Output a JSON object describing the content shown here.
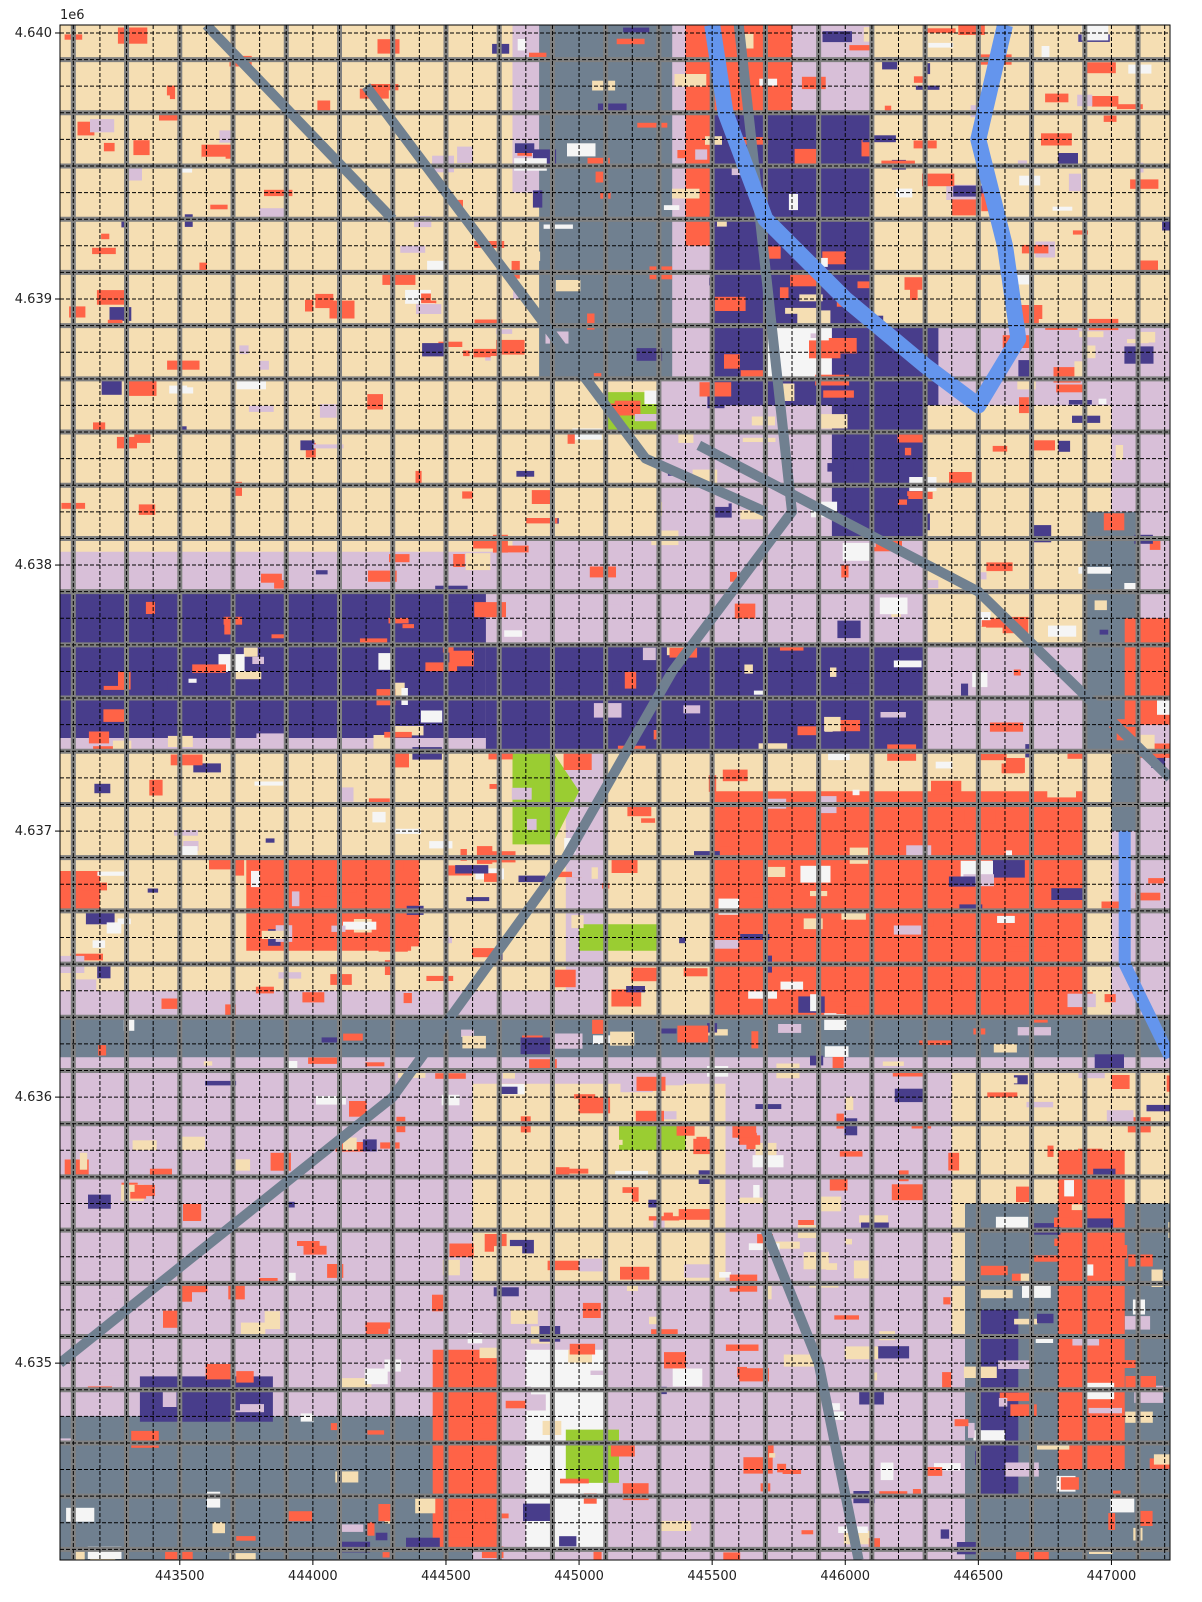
{
  "figure": {
    "offset_label": "1e6",
    "x_ticks": [
      "443500",
      "444000",
      "444500",
      "445000",
      "445500",
      "446000",
      "446500",
      "447000"
    ],
    "y_ticks": [
      "4.640",
      "4.639",
      "4.638",
      "4.637",
      "4.636",
      "4.635"
    ]
  },
  "chart_data": {
    "type": "map",
    "xlim": [
      443050,
      447220
    ],
    "ylim": [
      4634260,
      4640030
    ],
    "x_tick_values": [
      443500,
      444000,
      444500,
      445000,
      445500,
      446000,
      446500,
      447000
    ],
    "y_tick_values": [
      4640000,
      4639000,
      4638000,
      4637000,
      4636000,
      4635000
    ],
    "y_offset_multiplier": "1e6",
    "grid": "black dashed square cells, about 100 m spacing",
    "colors": {
      "residential": "#f5deb3",
      "commercial": "#ff6347",
      "industrial": "#483d8b",
      "institutional": "#d8bfd8",
      "park": "#9acd32",
      "water": "#6495ed",
      "road": "#708090",
      "vacant": "#f5f5f5",
      "street": "#808080",
      "grid_line": "#000000"
    },
    "zones_note": "Land-use polygons in data units (easting, northing)",
    "zones": [
      {
        "class": "institutional",
        "poly": [
          [
            443050,
            4634260
          ],
          [
            447220,
            4634260
          ],
          [
            447220,
            4640030
          ],
          [
            443050,
            4640030
          ]
        ]
      },
      {
        "class": "residential",
        "poly": [
          [
            443050,
            4638050
          ],
          [
            444750,
            4638050
          ],
          [
            444750,
            4640030
          ],
          [
            443050,
            4640030
          ]
        ]
      },
      {
        "class": "residential",
        "poly": [
          [
            444750,
            4638100
          ],
          [
            445300,
            4638100
          ],
          [
            445300,
            4639400
          ],
          [
            444750,
            4639400
          ]
        ]
      },
      {
        "class": "commercial",
        "poly": [
          [
            445400,
            4639200
          ],
          [
            445800,
            4639200
          ],
          [
            445800,
            4640030
          ],
          [
            445400,
            4640030
          ]
        ]
      },
      {
        "class": "road",
        "poly": [
          [
            444850,
            4638700
          ],
          [
            445350,
            4638700
          ],
          [
            445350,
            4640030
          ],
          [
            444850,
            4640030
          ]
        ]
      },
      {
        "class": "industrial",
        "poly": [
          [
            445500,
            4638600
          ],
          [
            446100,
            4638600
          ],
          [
            446100,
            4639700
          ],
          [
            445500,
            4639700
          ]
        ]
      },
      {
        "class": "industrial",
        "poly": [
          [
            445950,
            4638100
          ],
          [
            446350,
            4638100
          ],
          [
            446350,
            4638900
          ],
          [
            445950,
            4638900
          ]
        ]
      },
      {
        "class": "residential",
        "poly": [
          [
            446100,
            4638900
          ],
          [
            447220,
            4638900
          ],
          [
            447220,
            4640030
          ],
          [
            446100,
            4640030
          ]
        ]
      },
      {
        "class": "residential",
        "poly": [
          [
            446300,
            4637700
          ],
          [
            447000,
            4637700
          ],
          [
            447000,
            4638600
          ],
          [
            446300,
            4638600
          ]
        ]
      },
      {
        "class": "road",
        "poly": [
          [
            446900,
            4637000
          ],
          [
            447100,
            4637000
          ],
          [
            447100,
            4638200
          ],
          [
            446900,
            4638200
          ]
        ]
      },
      {
        "class": "commercial",
        "poly": [
          [
            447050,
            4637400
          ],
          [
            447220,
            4637400
          ],
          [
            447220,
            4637800
          ],
          [
            447050,
            4637800
          ]
        ]
      },
      {
        "class": "industrial",
        "poly": [
          [
            443050,
            4637350
          ],
          [
            444650,
            4637350
          ],
          [
            444650,
            4637900
          ],
          [
            443050,
            4637900
          ]
        ]
      },
      {
        "class": "industrial",
        "poly": [
          [
            444650,
            4637300
          ],
          [
            446300,
            4637300
          ],
          [
            446300,
            4637700
          ],
          [
            444650,
            4637700
          ]
        ]
      },
      {
        "class": "residential",
        "poly": [
          [
            445100,
            4636250
          ],
          [
            447000,
            4636250
          ],
          [
            447000,
            4637300
          ],
          [
            445100,
            4637300
          ]
        ]
      },
      {
        "class": "commercial",
        "poly": [
          [
            445500,
            4636250
          ],
          [
            446900,
            4636250
          ],
          [
            446900,
            4637150
          ],
          [
            445500,
            4637150
          ]
        ]
      },
      {
        "class": "residential",
        "poly": [
          [
            443050,
            4636400
          ],
          [
            444950,
            4636400
          ],
          [
            444950,
            4637300
          ],
          [
            443050,
            4637300
          ]
        ]
      },
      {
        "class": "commercial",
        "poly": [
          [
            443750,
            4636550
          ],
          [
            444400,
            4636550
          ],
          [
            444400,
            4636900
          ],
          [
            443750,
            4636900
          ]
        ]
      },
      {
        "class": "commercial",
        "poly": [
          [
            443050,
            4636700
          ],
          [
            443200,
            4636700
          ],
          [
            443200,
            4636850
          ],
          [
            443050,
            4636850
          ]
        ]
      },
      {
        "class": "park",
        "poly": [
          [
            444750,
            4636950
          ],
          [
            444900,
            4636950
          ],
          [
            445000,
            4637150
          ],
          [
            444900,
            4637300
          ],
          [
            444750,
            4637300
          ]
        ]
      },
      {
        "class": "road",
        "poly": [
          [
            443050,
            4636150
          ],
          [
            447220,
            4636150
          ],
          [
            447220,
            4636300
          ],
          [
            443050,
            4636300
          ]
        ]
      },
      {
        "class": "residential",
        "poly": [
          [
            444600,
            4635300
          ],
          [
            445550,
            4635300
          ],
          [
            445550,
            4636050
          ],
          [
            444600,
            4636050
          ]
        ]
      },
      {
        "class": "residential",
        "poly": [
          [
            446400,
            4635100
          ],
          [
            447220,
            4635100
          ],
          [
            447220,
            4636100
          ],
          [
            446400,
            4636100
          ]
        ]
      },
      {
        "class": "road",
        "poly": [
          [
            446450,
            4634260
          ],
          [
            447220,
            4634260
          ],
          [
            447220,
            4635600
          ],
          [
            446450,
            4635600
          ]
        ]
      },
      {
        "class": "commercial",
        "poly": [
          [
            446800,
            4634600
          ],
          [
            447050,
            4634600
          ],
          [
            447050,
            4635800
          ],
          [
            446800,
            4635800
          ]
        ]
      },
      {
        "class": "industrial",
        "poly": [
          [
            446500,
            4634500
          ],
          [
            446650,
            4634500
          ],
          [
            446650,
            4635200
          ],
          [
            446500,
            4635200
          ]
        ]
      },
      {
        "class": "road",
        "poly": [
          [
            443050,
            4634260
          ],
          [
            444600,
            4634260
          ],
          [
            444600,
            4634800
          ],
          [
            443050,
            4634800
          ]
        ]
      },
      {
        "class": "industrial",
        "poly": [
          [
            443350,
            4634780
          ],
          [
            443850,
            4634780
          ],
          [
            443850,
            4634950
          ],
          [
            443350,
            4634950
          ]
        ]
      },
      {
        "class": "vacant",
        "poly": [
          [
            444800,
            4634300
          ],
          [
            445100,
            4634300
          ],
          [
            445100,
            4635050
          ],
          [
            444800,
            4635050
          ]
        ]
      },
      {
        "class": "commercial",
        "poly": [
          [
            444450,
            4634300
          ],
          [
            444700,
            4634300
          ],
          [
            444700,
            4635050
          ],
          [
            444450,
            4635050
          ]
        ]
      },
      {
        "class": "park",
        "poly": [
          [
            444950,
            4634550
          ],
          [
            445150,
            4634550
          ],
          [
            445150,
            4634750
          ],
          [
            444950,
            4634750
          ]
        ]
      },
      {
        "class": "park",
        "poly": [
          [
            445100,
            4638500
          ],
          [
            445300,
            4638500
          ],
          [
            445300,
            4638650
          ],
          [
            445100,
            4638650
          ]
        ]
      },
      {
        "class": "park",
        "poly": [
          [
            445000,
            4636550
          ],
          [
            445300,
            4636550
          ],
          [
            445300,
            4636650
          ],
          [
            445000,
            4636650
          ]
        ]
      },
      {
        "class": "park",
        "poly": [
          [
            445150,
            4635800
          ],
          [
            445400,
            4635800
          ],
          [
            445400,
            4635900
          ],
          [
            445150,
            4635900
          ]
        ]
      },
      {
        "class": "vacant",
        "poly": [
          [
            445700,
            4638700
          ],
          [
            445950,
            4638700
          ],
          [
            445950,
            4638900
          ],
          [
            445700,
            4638900
          ]
        ]
      }
    ],
    "river_note": "Water course in data units",
    "river": [
      [
        445500,
        4640030
      ],
      [
        445550,
        4639700
      ],
      [
        445700,
        4639300
      ],
      [
        446000,
        4639000
      ],
      [
        446300,
        4638750
      ],
      [
        446500,
        4638600
      ],
      [
        446650,
        4638850
      ],
      [
        446600,
        4639200
      ],
      [
        446500,
        4639600
      ],
      [
        446600,
        4640030
      ]
    ],
    "river_south": [
      [
        447050,
        4637000
      ],
      [
        447050,
        4636500
      ],
      [
        447220,
        4636150
      ]
    ],
    "rail_lines": [
      [
        [
          443050,
          4635000
        ],
        [
          444300,
          4636000
        ],
        [
          444950,
          4636900
        ],
        [
          445350,
          4637600
        ],
        [
          445800,
          4638200
        ],
        [
          445600,
          4640030
        ]
      ],
      [
        [
          444200,
          4639800
        ],
        [
          445250,
          4638400
        ],
        [
          445700,
          4638200
        ]
      ],
      [
        [
          443600,
          4640030
        ],
        [
          444300,
          4639300
        ]
      ],
      [
        [
          445700,
          4635500
        ],
        [
          445900,
          4635000
        ],
        [
          446050,
          4634260
        ]
      ],
      [
        [
          445450,
          4638450
        ],
        [
          446500,
          4637900
        ],
        [
          447220,
          4637200
        ]
      ]
    ]
  }
}
